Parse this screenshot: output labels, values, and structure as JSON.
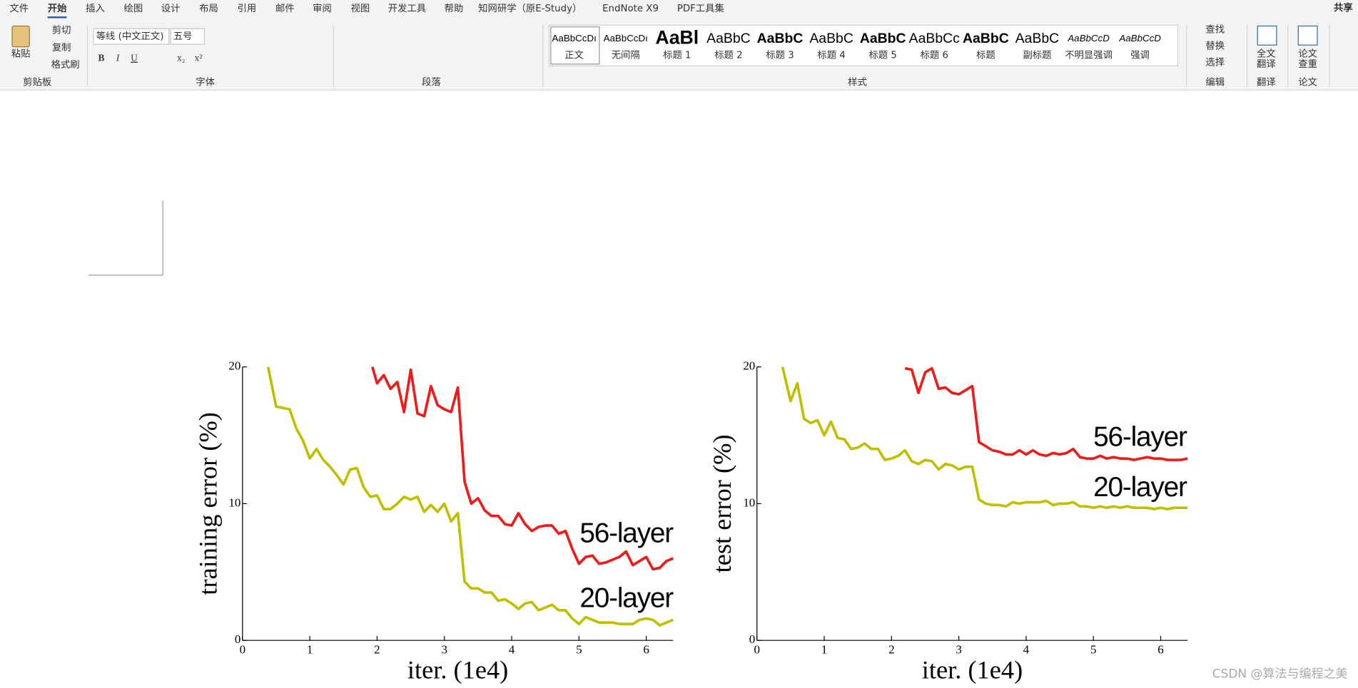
{
  "ribbon": {
    "tabs": [
      "文件",
      "开始",
      "插入",
      "绘图",
      "设计",
      "布局",
      "引用",
      "邮件",
      "审阅",
      "视图",
      "开发工具",
      "帮助",
      "知网研学（原E-Study）",
      "EndNote X9",
      "PDF工具集"
    ],
    "active_tab": 1,
    "share": "共享",
    "groups": [
      "剪贴板",
      "字体",
      "段落",
      "样式",
      "编辑",
      "翻译",
      "论文"
    ],
    "clipboard": {
      "paste": "粘贴",
      "cut": "剪切",
      "copy": "复制",
      "format_painter": "格式刷"
    },
    "font": {
      "name": "等线 (中文正文)",
      "size": "五号",
      "buttons": [
        "B",
        "I",
        "U",
        "x₂",
        "x²"
      ]
    },
    "styles": [
      {
        "sample": "AaBbCcDı",
        "name": "正文"
      },
      {
        "sample": "AaBbCcDı",
        "name": "无间隔"
      },
      {
        "sample": "AaBl",
        "name": "标题 1"
      },
      {
        "sample": "AaBbC",
        "name": "标题 2"
      },
      {
        "sample": "AaBbC",
        "name": "标题 3"
      },
      {
        "sample": "AaBbC",
        "name": "标题 4"
      },
      {
        "sample": "AaBbC",
        "name": "标题 5"
      },
      {
        "sample": "AaBbCc",
        "name": "标题 6"
      },
      {
        "sample": "AaBbC",
        "name": "标题"
      },
      {
        "sample": "AaBbC",
        "name": "副标题"
      },
      {
        "sample": "AaBbCcD",
        "name": "不明显强调"
      },
      {
        "sample": "AaBbCcD",
        "name": "强调"
      }
    ],
    "editing": [
      "查找",
      "替换",
      "选择"
    ],
    "translate": [
      "全文",
      "翻译"
    ],
    "paper": [
      "论文",
      "查重"
    ]
  },
  "chart_data": [
    {
      "type": "line",
      "xlabel": "iter. (1e4)",
      "ylabel": "training error (%)",
      "xlim": [
        0,
        6.4
      ],
      "ylim": [
        0,
        20
      ],
      "xticks": [
        0,
        1,
        2,
        3,
        4,
        5,
        6
      ],
      "yticks": [
        0,
        10,
        20
      ],
      "series": [
        {
          "name": "56-layer",
          "color": "#ee1b1b",
          "x": [
            1.93,
            2.0,
            2.1,
            2.2,
            2.3,
            2.4,
            2.5,
            2.6,
            2.7,
            2.8,
            2.9,
            3.0,
            3.1,
            3.2,
            3.3,
            3.4,
            3.5,
            3.6,
            3.7,
            3.8,
            3.9,
            4.0,
            4.1,
            4.2,
            4.3,
            4.4,
            4.5,
            4.6,
            4.7,
            4.8,
            4.9,
            5.0,
            5.1,
            5.2,
            5.3,
            5.4,
            5.5,
            5.6,
            5.7,
            5.8,
            5.9,
            6.0,
            6.1,
            6.2,
            6.3,
            6.4
          ],
          "values": [
            20,
            18.8,
            19.4,
            18.4,
            18.9,
            16.7,
            19.8,
            16.6,
            16.4,
            18.6,
            17.2,
            16.9,
            16.7,
            18.5,
            11.6,
            10.0,
            10.4,
            9.5,
            9.1,
            9.1,
            8.5,
            8.4,
            9.3,
            8.5,
            8.0,
            8.3,
            8.4,
            8.4,
            7.8,
            8.0,
            6.7,
            5.6,
            6.1,
            6.2,
            5.6,
            5.7,
            5.9,
            6.1,
            6.5,
            5.5,
            5.8,
            6.1,
            5.2,
            5.3,
            5.8,
            6.0
          ]
        },
        {
          "name": "20-layer",
          "color": "#bfbf00",
          "x": [
            0.38,
            0.5,
            0.6,
            0.7,
            0.8,
            0.9,
            1.0,
            1.1,
            1.2,
            1.3,
            1.4,
            1.5,
            1.6,
            1.7,
            1.8,
            1.9,
            2.0,
            2.1,
            2.2,
            2.3,
            2.4,
            2.5,
            2.6,
            2.7,
            2.8,
            2.9,
            3.0,
            3.1,
            3.2,
            3.3,
            3.4,
            3.5,
            3.6,
            3.7,
            3.8,
            3.9,
            4.0,
            4.1,
            4.2,
            4.3,
            4.4,
            4.5,
            4.6,
            4.7,
            4.8,
            4.9,
            5.0,
            5.1,
            5.2,
            5.3,
            5.4,
            5.5,
            5.6,
            5.7,
            5.8,
            5.9,
            6.0,
            6.1,
            6.2,
            6.3,
            6.4
          ],
          "values": [
            20,
            17.1,
            17.0,
            16.9,
            15.5,
            14.6,
            13.3,
            14.0,
            13.2,
            12.7,
            12.1,
            11.4,
            12.5,
            12.6,
            11.2,
            10.5,
            10.6,
            9.6,
            9.6,
            10.0,
            10.5,
            10.3,
            10.5,
            9.4,
            9.9,
            9.4,
            10.0,
            8.7,
            9.3,
            4.3,
            3.8,
            3.8,
            3.5,
            3.5,
            2.9,
            3.0,
            2.7,
            2.3,
            2.7,
            2.8,
            2.2,
            2.4,
            2.6,
            2.2,
            2.2,
            1.6,
            1.2,
            1.7,
            1.5,
            1.3,
            1.3,
            1.3,
            1.2,
            1.2,
            1.2,
            1.5,
            1.6,
            1.5,
            1.1,
            1.3,
            1.5
          ]
        }
      ]
    },
    {
      "type": "line",
      "xlabel": "iter. (1e4)",
      "ylabel": "test error (%)",
      "xlim": [
        0,
        6.4
      ],
      "ylim": [
        0,
        20
      ],
      "xticks": [
        0,
        1,
        2,
        3,
        4,
        5,
        6
      ],
      "yticks": [
        0,
        10,
        20
      ],
      "series": [
        {
          "name": "56-layer",
          "color": "#ee1b1b",
          "x": [
            2.2,
            2.3,
            2.4,
            2.5,
            2.6,
            2.7,
            2.8,
            2.9,
            3.0,
            3.1,
            3.2,
            3.3,
            3.4,
            3.5,
            3.6,
            3.7,
            3.8,
            3.9,
            4.0,
            4.1,
            4.2,
            4.3,
            4.4,
            4.5,
            4.6,
            4.7,
            4.8,
            4.9,
            5.0,
            5.1,
            5.2,
            5.3,
            5.4,
            5.5,
            5.6,
            5.7,
            5.8,
            5.9,
            6.0,
            6.1,
            6.2,
            6.3,
            6.4
          ],
          "values": [
            19.9,
            19.8,
            18.1,
            19.6,
            19.9,
            18.4,
            18.5,
            18.1,
            18.0,
            18.3,
            18.6,
            14.5,
            14.2,
            13.9,
            13.8,
            13.6,
            13.6,
            13.9,
            13.6,
            13.9,
            13.6,
            13.5,
            13.7,
            13.6,
            13.7,
            14.0,
            13.4,
            13.3,
            13.3,
            13.5,
            13.3,
            13.4,
            13.3,
            13.3,
            13.2,
            13.3,
            13.4,
            13.3,
            13.3,
            13.2,
            13.2,
            13.2,
            13.3
          ]
        },
        {
          "name": "20-layer",
          "color": "#bfbf00",
          "x": [
            0.38,
            0.5,
            0.6,
            0.7,
            0.8,
            0.9,
            1.0,
            1.1,
            1.2,
            1.3,
            1.4,
            1.5,
            1.6,
            1.7,
            1.8,
            1.9,
            2.0,
            2.1,
            2.2,
            2.3,
            2.4,
            2.5,
            2.6,
            2.7,
            2.8,
            2.9,
            3.0,
            3.1,
            3.2,
            3.3,
            3.4,
            3.5,
            3.6,
            3.7,
            3.8,
            3.9,
            4.0,
            4.1,
            4.2,
            4.3,
            4.4,
            4.5,
            4.6,
            4.7,
            4.8,
            4.9,
            5.0,
            5.1,
            5.2,
            5.3,
            5.4,
            5.5,
            5.6,
            5.7,
            5.8,
            5.9,
            6.0,
            6.1,
            6.2,
            6.3,
            6.4
          ],
          "values": [
            20,
            17.5,
            18.8,
            16.2,
            15.9,
            16.1,
            15.0,
            16.0,
            14.8,
            14.7,
            14.0,
            14.1,
            14.4,
            14.0,
            14.0,
            13.2,
            13.3,
            13.5,
            13.9,
            13.1,
            12.9,
            13.2,
            13.1,
            12.5,
            12.9,
            12.8,
            12.5,
            12.7,
            12.7,
            10.3,
            10.0,
            9.9,
            9.9,
            9.8,
            10.1,
            10.0,
            10.1,
            10.1,
            10.1,
            10.2,
            9.9,
            10.0,
            10.0,
            10.1,
            9.8,
            9.8,
            9.7,
            9.8,
            9.7,
            9.8,
            9.7,
            9.8,
            9.7,
            9.7,
            9.7,
            9.6,
            9.7,
            9.6,
            9.7,
            9.7,
            9.7
          ]
        }
      ]
    }
  ],
  "watermark": "CSDN @算法与编程之美"
}
